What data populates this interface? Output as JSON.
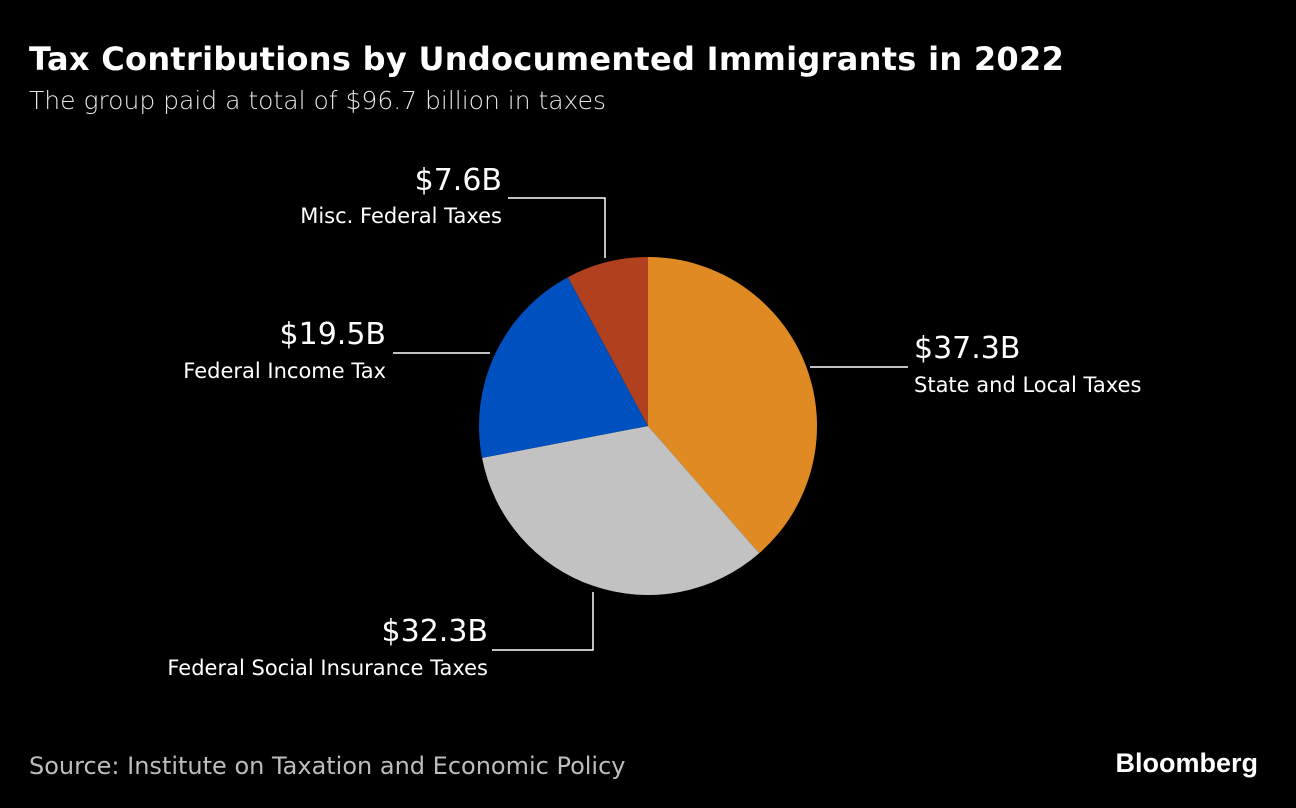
{
  "header": {
    "title": "Tax Contributions by Undocumented Immigrants in 2022",
    "subtitle": "The group paid a total of $96.7 billion in taxes"
  },
  "chart_data": {
    "type": "pie",
    "unit": "billion USD",
    "slices": [
      {
        "label": "State and Local Taxes",
        "value": 37.3,
        "value_label": "$37.3B",
        "color": "#E08A24"
      },
      {
        "label": "Federal Social Insurance Taxes",
        "value": 32.3,
        "value_label": "$32.3B",
        "color": "#C2C2C2"
      },
      {
        "label": "Federal Income Tax",
        "value": 19.5,
        "value_label": "$19.5B",
        "color": "#0050C0"
      },
      {
        "label": "Misc. Federal Taxes",
        "value": 7.6,
        "value_label": "$7.6B",
        "color": "#B0401E"
      }
    ],
    "start": "12 o'clock",
    "direction": "clockwise"
  },
  "footer": {
    "source": "Source: Institute on Taxation and Economic Policy",
    "brand": "Bloomberg"
  }
}
